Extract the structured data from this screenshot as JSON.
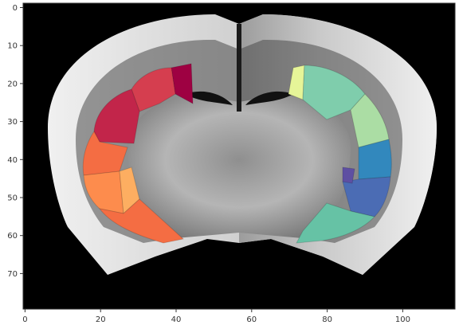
{
  "image": {
    "subject": "coronal brain section with colored cortical parcellation overlay",
    "colors": {
      "background": "#000000",
      "frame": "#333333",
      "tissue_light": "#d6d6d6",
      "tissue_mid": "#9a9a9a",
      "tissue_dark": "#3a3a3a",
      "left_regions": [
        "#9e0142",
        "#c2254a",
        "#d53e4f",
        "#f46d43",
        "#fd8c4d",
        "#fdae61"
      ],
      "right_regions": [
        "#e6f598",
        "#abdda4",
        "#7fcdac",
        "#66c2a5",
        "#3288bd",
        "#4b6cb4",
        "#5e4fa2"
      ]
    }
  },
  "axes": {
    "x_ticks": [
      "0",
      "20",
      "40",
      "60",
      "80",
      "100"
    ],
    "y_ticks": [
      "0",
      "10",
      "20",
      "30",
      "40",
      "50",
      "60",
      "70"
    ]
  }
}
